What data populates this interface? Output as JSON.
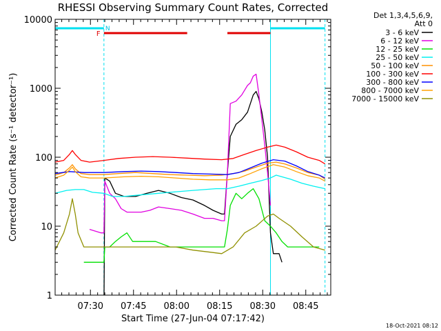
{
  "chart_data": {
    "type": "line",
    "title": "RHESSI Observing Summary Count Rates, Corrected",
    "xlabel": "Start Time (27-Jun-04 07:17:42)",
    "ylabel": "Corrected Count Rate (s⁻¹ detector⁻¹)",
    "yscale": "log",
    "ylim": [
      1,
      10000
    ],
    "xlim_minutes": [
      0,
      96
    ],
    "y_ticks": [
      {
        "value": 1,
        "label": "1"
      },
      {
        "value": 10,
        "label": "10"
      },
      {
        "value": 100,
        "label": "100"
      },
      {
        "value": 1000,
        "label": "1000"
      },
      {
        "value": 10000,
        "label": "10000"
      }
    ],
    "x_ticks": [
      {
        "t": 12.3,
        "label": "07:30"
      },
      {
        "t": 27.3,
        "label": "07:45"
      },
      {
        "t": 42.3,
        "label": "08:00"
      },
      {
        "t": 57.3,
        "label": "08:15"
      },
      {
        "t": 72.3,
        "label": "08:30"
      },
      {
        "t": 87.3,
        "label": "08:45"
      }
    ],
    "legend_header": [
      "Det 1,3,4,5,6,9,",
      "Att 0"
    ],
    "footer_date": "18-Oct-2021 08:12",
    "flag_labels": {
      "fast": "F",
      "night": "N"
    },
    "flags": {
      "fast_segments": [
        [
          17,
          46
        ],
        [
          60,
          75
        ]
      ],
      "night_segments": [
        [
          0,
          17
        ],
        [
          75,
          94
        ]
      ]
    },
    "vertical_markers": [
      {
        "t": 0,
        "style": "solid"
      },
      {
        "t": 17,
        "style": "dashed"
      },
      {
        "t": 75,
        "style": "solid"
      },
      {
        "t": 94,
        "style": "dashed"
      }
    ],
    "series": [
      {
        "name": "3 - 6 keV",
        "color": "#000000",
        "points": [
          [
            17,
            0.5
          ],
          [
            17.3,
            50
          ],
          [
            19,
            45
          ],
          [
            21,
            30
          ],
          [
            24,
            27
          ],
          [
            28,
            27
          ],
          [
            32,
            30
          ],
          [
            36,
            33
          ],
          [
            40,
            30
          ],
          [
            44,
            26
          ],
          [
            48,
            24
          ],
          [
            52,
            20
          ],
          [
            55,
            17
          ],
          [
            58,
            15
          ],
          [
            59,
            15
          ],
          [
            60,
            60
          ],
          [
            61,
            200
          ],
          [
            63,
            300
          ],
          [
            65,
            350
          ],
          [
            67,
            450
          ],
          [
            69,
            800
          ],
          [
            70,
            900
          ],
          [
            71,
            700
          ],
          [
            72,
            450
          ],
          [
            73,
            250
          ],
          [
            74,
            100
          ],
          [
            75,
            8
          ],
          [
            76,
            4
          ],
          [
            78,
            4
          ],
          [
            79,
            3
          ]
        ]
      },
      {
        "name": "6 - 12 keV",
        "color": "#e000e0",
        "points": [
          [
            12,
            9
          ],
          [
            16,
            8
          ],
          [
            17,
            8
          ],
          [
            17.3,
            45
          ],
          [
            19,
            30
          ],
          [
            21,
            25
          ],
          [
            23,
            18
          ],
          [
            25,
            16
          ],
          [
            27,
            16
          ],
          [
            30,
            16
          ],
          [
            33,
            17
          ],
          [
            36,
            19
          ],
          [
            40,
            18
          ],
          [
            44,
            17
          ],
          [
            48,
            15
          ],
          [
            52,
            13
          ],
          [
            55,
            13
          ],
          [
            58,
            12
          ],
          [
            59,
            12
          ],
          [
            60,
            60
          ],
          [
            61,
            600
          ],
          [
            63,
            650
          ],
          [
            65,
            800
          ],
          [
            67,
            1100
          ],
          [
            68,
            1200
          ],
          [
            69,
            1500
          ],
          [
            70,
            1600
          ],
          [
            71,
            800
          ],
          [
            72,
            350
          ],
          [
            73,
            150
          ],
          [
            74,
            60
          ],
          [
            75,
            20
          ]
        ]
      },
      {
        "name": "12 - 25 keV",
        "color": "#00e000",
        "points": [
          [
            10,
            3
          ],
          [
            17,
            3
          ],
          [
            17.3,
            5
          ],
          [
            19,
            5
          ],
          [
            21,
            6
          ],
          [
            23,
            7
          ],
          [
            25,
            8
          ],
          [
            27,
            6
          ],
          [
            30,
            6
          ],
          [
            35,
            6
          ],
          [
            40,
            5
          ],
          [
            45,
            5
          ],
          [
            50,
            5
          ],
          [
            55,
            5
          ],
          [
            59,
            5
          ],
          [
            60,
            9
          ],
          [
            61,
            20
          ],
          [
            63,
            30
          ],
          [
            65,
            25
          ],
          [
            67,
            30
          ],
          [
            69,
            35
          ],
          [
            71,
            25
          ],
          [
            73,
            12
          ],
          [
            75,
            10
          ],
          [
            77,
            8
          ],
          [
            79,
            6
          ],
          [
            81,
            5
          ],
          [
            84,
            5
          ],
          [
            88,
            5
          ],
          [
            92,
            5
          ]
        ]
      },
      {
        "name": "25 - 50 keV",
        "color": "#00f0f0",
        "points": [
          [
            0,
            30
          ],
          [
            4,
            33
          ],
          [
            7,
            34
          ],
          [
            10,
            34
          ],
          [
            13,
            31
          ],
          [
            17,
            30
          ],
          [
            20,
            27
          ],
          [
            24,
            27
          ],
          [
            28,
            28
          ],
          [
            32,
            29
          ],
          [
            36,
            30
          ],
          [
            40,
            31
          ],
          [
            44,
            32
          ],
          [
            48,
            33
          ],
          [
            52,
            34
          ],
          [
            56,
            35
          ],
          [
            60,
            35
          ],
          [
            64,
            38
          ],
          [
            68,
            42
          ],
          [
            72,
            46
          ],
          [
            75,
            50
          ],
          [
            77,
            55
          ],
          [
            79,
            52
          ],
          [
            82,
            48
          ],
          [
            86,
            42
          ],
          [
            90,
            38
          ],
          [
            94,
            35
          ]
        ]
      },
      {
        "name": "50 - 100 keV",
        "color": "#ff9000",
        "points": [
          [
            0,
            55
          ],
          [
            3,
            60
          ],
          [
            5,
            70
          ],
          [
            6,
            78
          ],
          [
            7,
            68
          ],
          [
            9,
            58
          ],
          [
            12,
            56
          ],
          [
            17,
            56
          ],
          [
            22,
            58
          ],
          [
            28,
            60
          ],
          [
            34,
            58
          ],
          [
            40,
            56
          ],
          [
            46,
            55
          ],
          [
            52,
            54
          ],
          [
            58,
            55
          ],
          [
            62,
            58
          ],
          [
            66,
            63
          ],
          [
            70,
            72
          ],
          [
            74,
            82
          ],
          [
            77,
            85
          ],
          [
            80,
            80
          ],
          [
            84,
            70
          ],
          [
            88,
            60
          ],
          [
            92,
            55
          ],
          [
            94,
            48
          ]
        ]
      },
      {
        "name": "100 - 300 keV",
        "color": "#ff0000",
        "points": [
          [
            0,
            85
          ],
          [
            3,
            90
          ],
          [
            5,
            110
          ],
          [
            6,
            125
          ],
          [
            7,
            110
          ],
          [
            9,
            90
          ],
          [
            12,
            85
          ],
          [
            17,
            90
          ],
          [
            22,
            96
          ],
          [
            28,
            100
          ],
          [
            34,
            102
          ],
          [
            40,
            100
          ],
          [
            46,
            97
          ],
          [
            52,
            94
          ],
          [
            58,
            92
          ],
          [
            62,
            96
          ],
          [
            66,
            110
          ],
          [
            70,
            125
          ],
          [
            74,
            140
          ],
          [
            77,
            150
          ],
          [
            80,
            140
          ],
          [
            84,
            120
          ],
          [
            88,
            100
          ],
          [
            92,
            90
          ],
          [
            94,
            80
          ]
        ]
      },
      {
        "name": "300 - 800 keV",
        "color": "#0000ff",
        "points": [
          [
            0,
            58
          ],
          [
            5,
            62
          ],
          [
            10,
            60
          ],
          [
            17,
            60
          ],
          [
            24,
            62
          ],
          [
            30,
            63
          ],
          [
            36,
            62
          ],
          [
            42,
            60
          ],
          [
            48,
            58
          ],
          [
            54,
            57
          ],
          [
            60,
            56
          ],
          [
            64,
            60
          ],
          [
            68,
            70
          ],
          [
            72,
            82
          ],
          [
            76,
            92
          ],
          [
            80,
            88
          ],
          [
            84,
            75
          ],
          [
            88,
            62
          ],
          [
            92,
            55
          ],
          [
            94,
            50
          ]
        ]
      },
      {
        "name": "800 - 7000 keV",
        "color": "#ffa000",
        "points": [
          [
            0,
            50
          ],
          [
            3,
            55
          ],
          [
            5,
            65
          ],
          [
            6,
            72
          ],
          [
            7,
            62
          ],
          [
            9,
            52
          ],
          [
            12,
            50
          ],
          [
            17,
            50
          ],
          [
            24,
            52
          ],
          [
            30,
            53
          ],
          [
            36,
            52
          ],
          [
            42,
            50
          ],
          [
            48,
            48
          ],
          [
            54,
            47
          ],
          [
            60,
            47
          ],
          [
            64,
            50
          ],
          [
            68,
            58
          ],
          [
            72,
            68
          ],
          [
            76,
            78
          ],
          [
            80,
            72
          ],
          [
            84,
            62
          ],
          [
            88,
            54
          ],
          [
            92,
            50
          ],
          [
            94,
            45
          ]
        ]
      },
      {
        "name": "7000 - 15000 keV",
        "color": "#909000",
        "points": [
          [
            0,
            4.5
          ],
          [
            3,
            8
          ],
          [
            5,
            15
          ],
          [
            6,
            25
          ],
          [
            7,
            15
          ],
          [
            8,
            8
          ],
          [
            10,
            5
          ],
          [
            17,
            5
          ],
          [
            24,
            5
          ],
          [
            30,
            5
          ],
          [
            36,
            5
          ],
          [
            42,
            5
          ],
          [
            48,
            4.5
          ],
          [
            54,
            4.2
          ],
          [
            58,
            4
          ],
          [
            62,
            5
          ],
          [
            66,
            8
          ],
          [
            70,
            10
          ],
          [
            74,
            14
          ],
          [
            76,
            15
          ],
          [
            78,
            13
          ],
          [
            82,
            10
          ],
          [
            86,
            7
          ],
          [
            90,
            5
          ],
          [
            94,
            4.5
          ]
        ]
      }
    ]
  }
}
